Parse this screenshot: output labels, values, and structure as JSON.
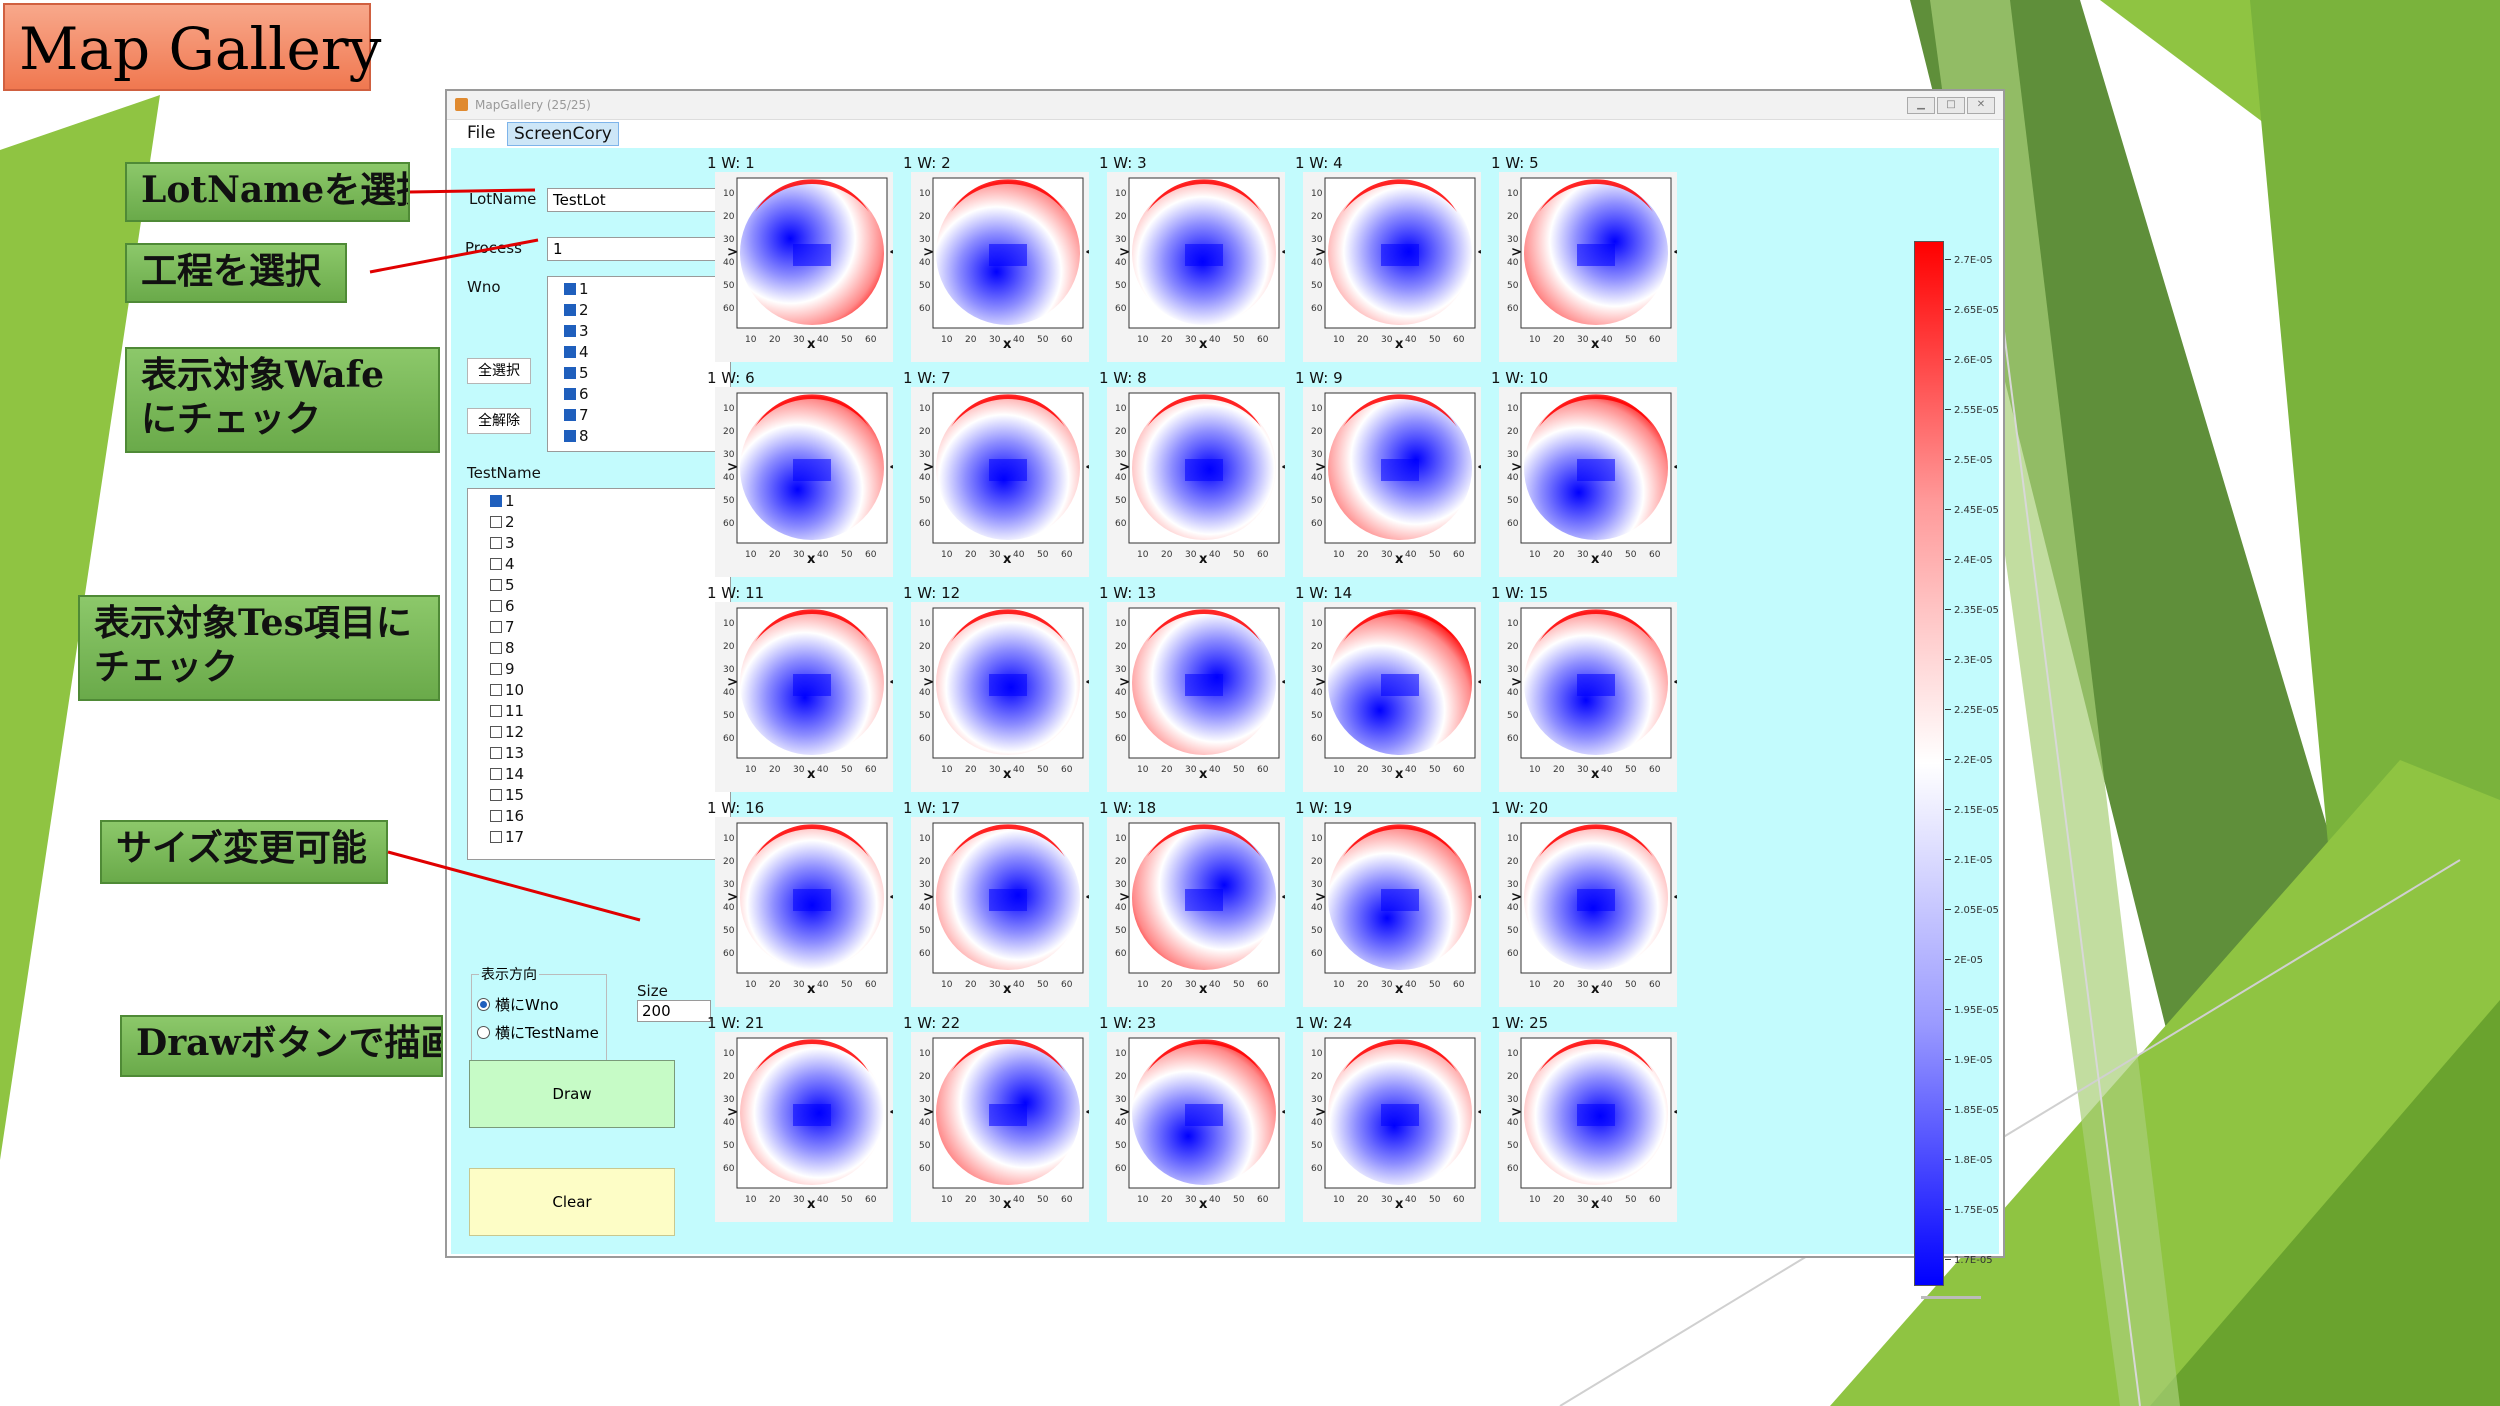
{
  "slide": {
    "title": "Map Gallery",
    "callouts": [
      "LotNameを選択",
      "工程を選択",
      "表示対象Wafeにチェック",
      "表示対象Tes項目にチェック",
      "サイズ変更可能",
      "Drawボタンで描画"
    ]
  },
  "window": {
    "title": "MapGallery (25/25)",
    "controls": [
      "min",
      "max",
      "close"
    ]
  },
  "menu": [
    "File",
    "ScreenCory"
  ],
  "form": {
    "lotname_label": "LotName",
    "lotname_value": "TestLot",
    "process_label": "Process",
    "process_value": "1",
    "wno_label": "Wno",
    "select_all": "全選択",
    "deselect_all": "全解除",
    "wno_items": [
      {
        "label": "1",
        "checked": true
      },
      {
        "label": "2",
        "checked": true
      },
      {
        "label": "3",
        "checked": true
      },
      {
        "label": "4",
        "checked": true
      },
      {
        "label": "5",
        "checked": true
      },
      {
        "label": "6",
        "checked": true
      },
      {
        "label": "7",
        "checked": true
      },
      {
        "label": "8",
        "checked": true
      }
    ],
    "testname_label": "TestName",
    "testname_items": [
      {
        "label": "1",
        "checked": true
      },
      {
        "label": "2",
        "checked": false
      },
      {
        "label": "3",
        "checked": false
      },
      {
        "label": "4",
        "checked": false
      },
      {
        "label": "5",
        "checked": false
      },
      {
        "label": "6",
        "checked": false
      },
      {
        "label": "7",
        "checked": false
      },
      {
        "label": "8",
        "checked": false
      },
      {
        "label": "9",
        "checked": false
      },
      {
        "label": "10",
        "checked": false
      },
      {
        "label": "11",
        "checked": false
      },
      {
        "label": "12",
        "checked": false
      },
      {
        "label": "13",
        "checked": false
      },
      {
        "label": "14",
        "checked": false
      },
      {
        "label": "15",
        "checked": false
      },
      {
        "label": "16",
        "checked": false
      },
      {
        "label": "17",
        "checked": false
      }
    ],
    "direction_label": "表示方向",
    "direction_options": [
      {
        "label": "横にWno",
        "selected": true
      },
      {
        "label": "横にTestName",
        "selected": false
      }
    ],
    "size_label": "Size",
    "size_value": "200",
    "draw_button": "Draw",
    "clear_button": "Clear"
  },
  "gallery": {
    "maps": [
      "1 W: 1",
      "1 W: 2",
      "1 W: 3",
      "1 W: 4",
      "1 W: 5",
      "1 W: 6",
      "1 W: 7",
      "1 W: 8",
      "1 W: 9",
      "1 W: 10",
      "1 W: 11",
      "1 W: 12",
      "1 W: 13",
      "1 W: 14",
      "1 W: 15",
      "1 W: 16",
      "1 W: 17",
      "1 W: 18",
      "1 W: 19",
      "1 W: 20",
      "1 W: 21",
      "1 W: 22",
      "1 W: 23",
      "1 W: 24",
      "1 W: 25"
    ],
    "x_ticks": [
      "10",
      "20",
      "30",
      "40",
      "50",
      "60"
    ],
    "y_ticks": [
      "10",
      "20",
      "30",
      "40",
      "50",
      "60"
    ],
    "colors": {
      "high": "#ff0000",
      "mid": "#ffffff",
      "low": "#0000ff"
    }
  },
  "colorbar": {
    "ticks": [
      "2.7E-05",
      "2.65E-05",
      "2.6E-05",
      "2.55E-05",
      "2.5E-05",
      "2.45E-05",
      "2.4E-05",
      "2.35E-05",
      "2.3E-05",
      "2.25E-05",
      "2.2E-05",
      "2.15E-05",
      "2.1E-05",
      "2.05E-05",
      "2E-05",
      "1.95E-05",
      "1.9E-05",
      "1.85E-05",
      "1.8E-05",
      "1.75E-05",
      "1.7E-05"
    ]
  }
}
